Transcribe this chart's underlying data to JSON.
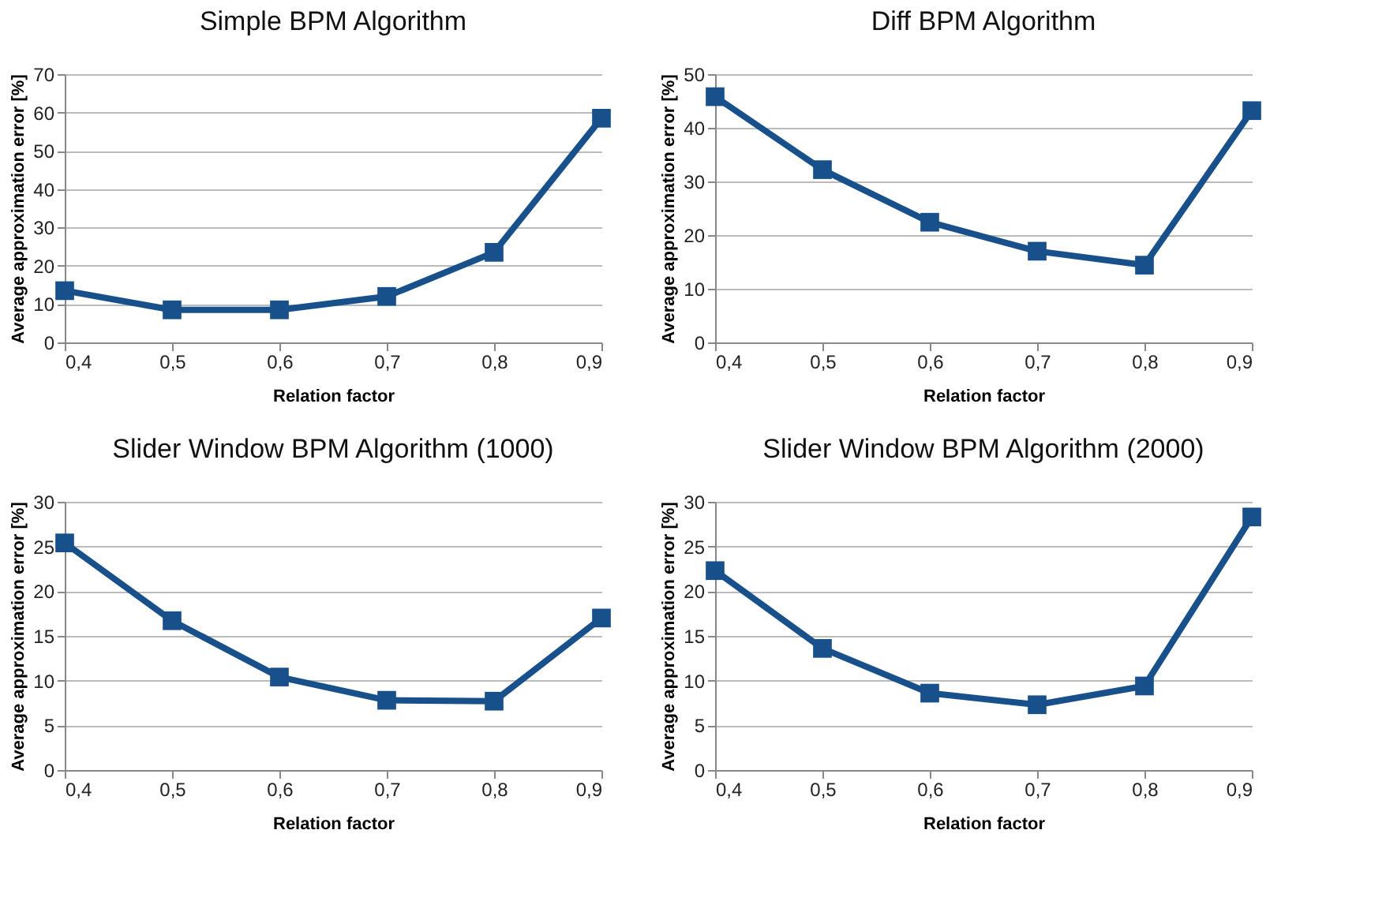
{
  "chart_data": [
    {
      "type": "line",
      "title": "Simple BPM Algorithm",
      "xlabel": "Relation factor",
      "ylabel": "Average approximation error [%]",
      "categories": [
        "0,4",
        "0,5",
        "0,6",
        "0,7",
        "0,8",
        "0,9"
      ],
      "series": [
        {
          "color": "#17508a",
          "values": [
            13.5,
            8.5,
            8.5,
            12,
            23.5,
            58.5
          ]
        }
      ],
      "ylim": [
        0,
        70
      ],
      "yticks": [
        0,
        10,
        20,
        30,
        40,
        50,
        60,
        70
      ],
      "grid": "y",
      "marker": "square",
      "line_style": "solid"
    },
    {
      "type": "line",
      "title": "Diff BPM Algorithm",
      "xlabel": "Relation factor",
      "ylabel": "Average approximation error [%]",
      "categories": [
        "0,4",
        "0,5",
        "0,6",
        "0,7",
        "0,8",
        "0,9"
      ],
      "series": [
        {
          "color": "#17508a",
          "values": [
            45.8,
            32.2,
            22.4,
            17,
            14.4,
            43.2
          ]
        }
      ],
      "ylim": [
        0,
        50
      ],
      "yticks": [
        0,
        10,
        20,
        30,
        40,
        50
      ],
      "grid": "y",
      "marker": "square",
      "line_style": "solid"
    },
    {
      "type": "line",
      "title": "Slider Window BPM Algorithm (1000)",
      "xlabel": "Relation factor",
      "ylabel": "Average approximation error [%]",
      "categories": [
        "0,4",
        "0,5",
        "0,6",
        "0,7",
        "0,8",
        "0,9"
      ],
      "series": [
        {
          "color": "#17508a",
          "values": [
            25.4,
            16.7,
            10.4,
            7.8,
            7.7,
            17
          ]
        }
      ],
      "ylim": [
        0,
        30
      ],
      "yticks": [
        0,
        5,
        10,
        15,
        20,
        25,
        30
      ],
      "grid": "y",
      "marker": "square",
      "line_style": "solid"
    },
    {
      "type": "line",
      "title": "Slider Window BPM Algorithm (2000)",
      "xlabel": "Relation factor",
      "ylabel": "Average approximation error [%]",
      "categories": [
        "0,4",
        "0,5",
        "0,6",
        "0,7",
        "0,8",
        "0,9"
      ],
      "series": [
        {
          "color": "#17508a",
          "values": [
            22.3,
            13.6,
            8.6,
            7.3,
            9.4,
            28.3
          ]
        }
      ],
      "ylim": [
        0,
        30
      ],
      "yticks": [
        0,
        5,
        10,
        15,
        20,
        25,
        30
      ],
      "grid": "y",
      "marker": "square",
      "line_style": "solid"
    }
  ]
}
